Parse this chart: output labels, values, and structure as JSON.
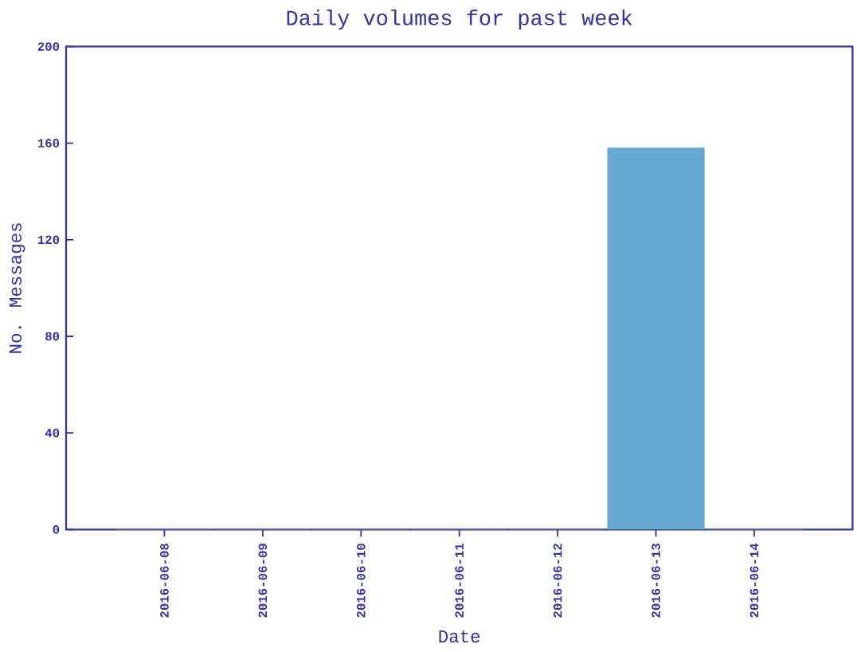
{
  "chart_data": {
    "type": "bar",
    "title": "Daily volumes for past week",
    "xlabel": "Date",
    "ylabel": "No. Messages",
    "categories": [
      "2016-06-08",
      "2016-06-09",
      "2016-06-10",
      "2016-06-11",
      "2016-06-12",
      "2016-06-13",
      "2016-06-14"
    ],
    "values": [
      0,
      0,
      0,
      0,
      0,
      158,
      0
    ],
    "color": "#6aa8d4",
    "ylim": [
      0,
      200
    ],
    "yticks": [
      0,
      40,
      80,
      120,
      160,
      200
    ]
  }
}
